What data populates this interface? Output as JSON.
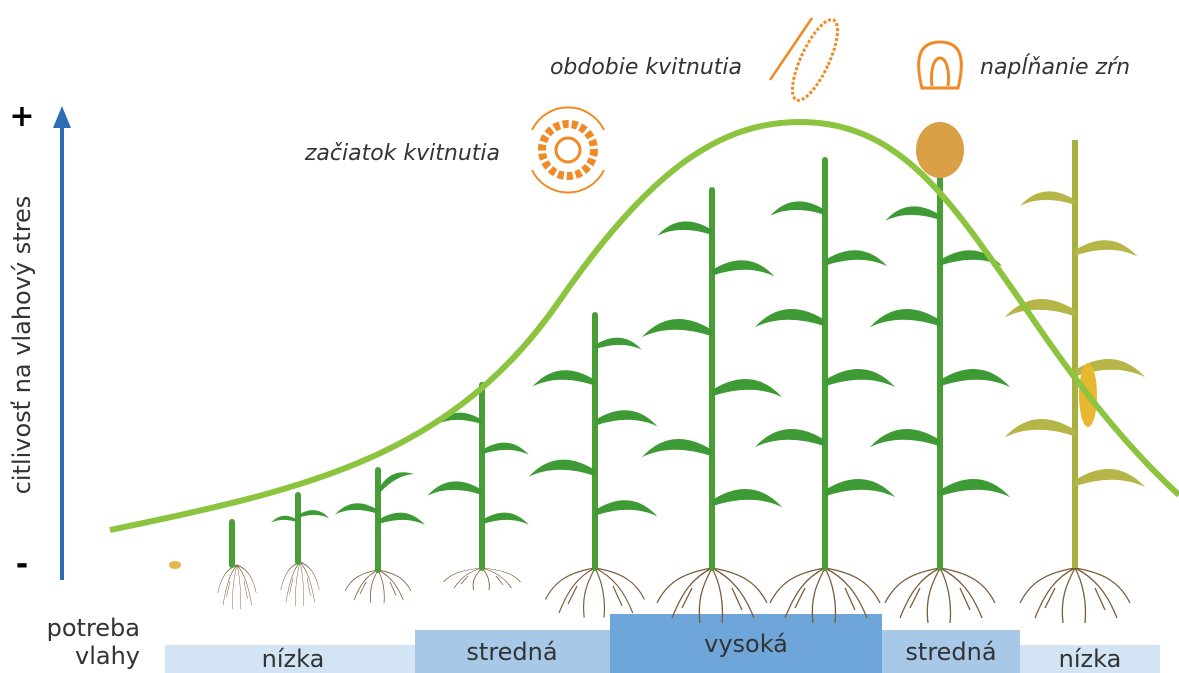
{
  "axis": {
    "plus": "+",
    "minus": "-",
    "label": "citlivosť na vlahový stres"
  },
  "stages": [
    "začiatok kvitnutia",
    "obdobie kvitnutia",
    "napĺňanie zŕn"
  ],
  "moisture": {
    "label": [
      "potreba",
      "vlahy"
    ],
    "levels": [
      "nízka",
      "stredná",
      "vysoká",
      "stredná",
      "nízka"
    ]
  }
}
